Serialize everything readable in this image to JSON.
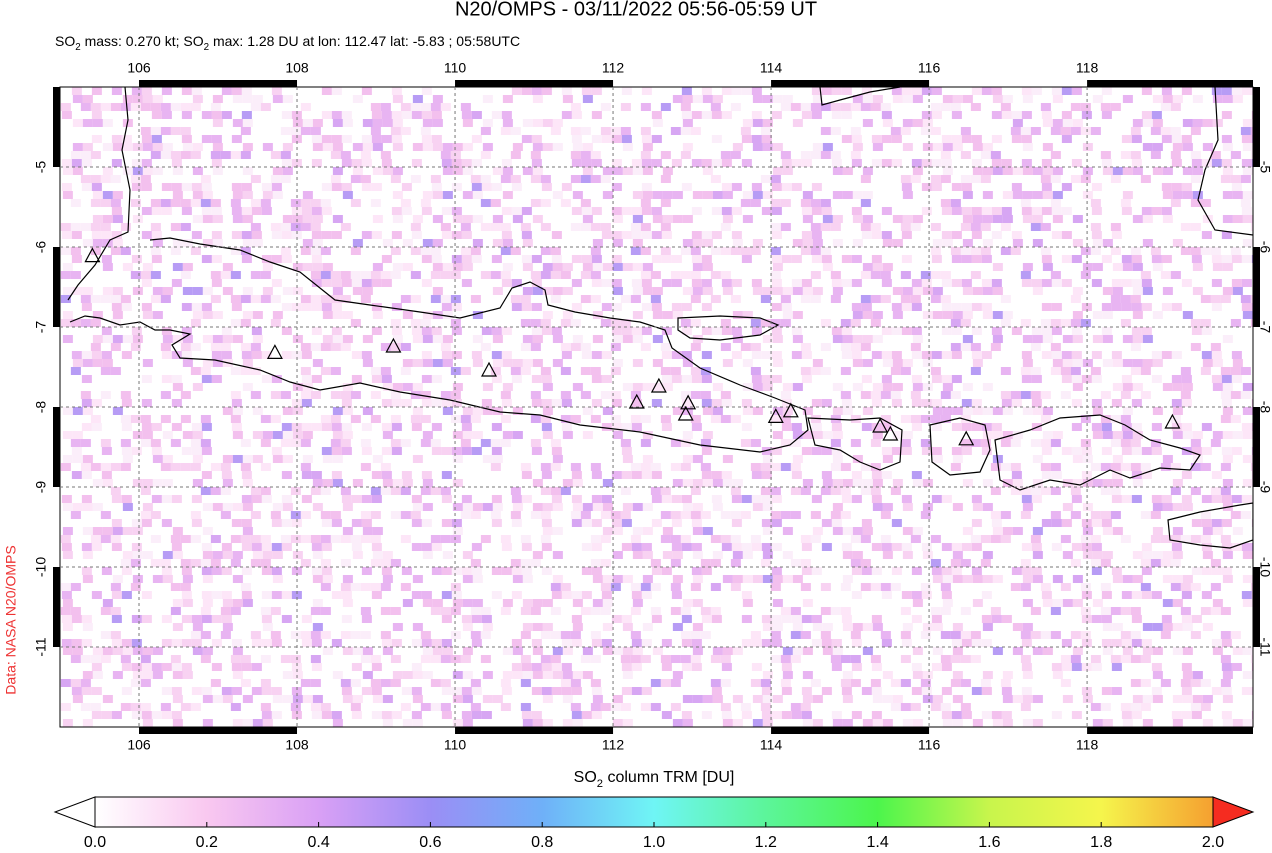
{
  "chart_data": {
    "type": "map",
    "title": "N20/OMPS - 03/11/2022 05:56-05:59 UT",
    "subtitle": [
      "SO",
      "2",
      " mass: 0.270 kt; SO",
      "2",
      " max: 1.28 DU at lon: 112.47 lat: -5.83 ; 05:58UTC"
    ],
    "credit": "Data: NASA N20/OMPS",
    "xlim": [
      105,
      120.1
    ],
    "ylim": [
      -12,
      -4
    ],
    "xticks": [
      106,
      108,
      110,
      112,
      114,
      116,
      118
    ],
    "yticks": [
      -5,
      -6,
      -7,
      -8,
      -9,
      -10,
      -11
    ],
    "volcanoes": {
      "lon": [
        105.41,
        107.72,
        109.22,
        110.43,
        112.3,
        112.58,
        112.95,
        112.92,
        114.06,
        114.25,
        115.38,
        115.51,
        116.47,
        119.08
      ],
      "lat": [
        -6.12,
        -7.33,
        -7.25,
        -7.55,
        -7.95,
        -7.75,
        -7.96,
        -8.1,
        -8.13,
        -8.06,
        -8.25,
        -8.35,
        -8.41,
        -8.2
      ]
    },
    "colorbar": {
      "label": [
        "SO",
        "2",
        " column TRM [DU]"
      ],
      "lim": [
        0,
        2
      ],
      "ticks": [
        {
          "value": 0,
          "label": "0.0"
        },
        {
          "value": 0.2,
          "label": "0.2"
        },
        {
          "value": 0.4,
          "label": "0.4"
        },
        {
          "value": 0.6,
          "label": "0.6"
        },
        {
          "value": 0.8,
          "label": "0.8"
        },
        {
          "value": 1,
          "label": "1.0"
        },
        {
          "value": 1.2,
          "label": "1.2"
        },
        {
          "value": 1.4,
          "label": "1.4"
        },
        {
          "value": 1.6,
          "label": "1.6"
        },
        {
          "value": 1.8,
          "label": "1.8"
        },
        {
          "value": 2,
          "label": "2.0"
        }
      ],
      "colors": [
        "#ffffff",
        "#f9c8f0",
        "#d9a0f5",
        "#9b8ef5",
        "#6fb0f8",
        "#6ff5f5",
        "#5cf59a",
        "#4cf54c",
        "#c8f54c",
        "#f5f54c",
        "#f5a030",
        "#f52c20"
      ]
    }
  }
}
